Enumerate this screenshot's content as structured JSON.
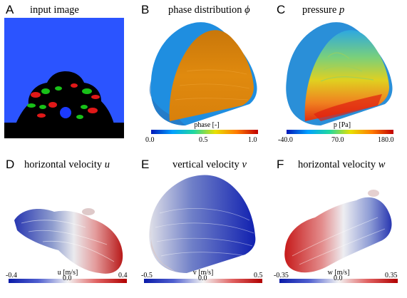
{
  "panels": [
    {
      "letter": "A",
      "title": "input image",
      "symbol": ""
    },
    {
      "letter": "B",
      "title": "phase distribution",
      "symbol": "ϕ"
    },
    {
      "letter": "C",
      "title": "pressure",
      "symbol": "p"
    },
    {
      "letter": "D",
      "title": "horizontal velocity",
      "symbol": "u"
    },
    {
      "letter": "E",
      "title": "vertical velocity",
      "symbol": "v"
    },
    {
      "letter": "F",
      "title": "horizontal velocity",
      "symbol": "w"
    }
  ],
  "colorbars": {
    "B": {
      "title": "phase [-]",
      "min": "0.0",
      "mid": "0.5",
      "max": "1.0",
      "palette": "rainbow"
    },
    "C": {
      "title": "p [Pa]",
      "min": "-40.0",
      "mid": "70.0",
      "max": "180.0",
      "palette": "rainbow"
    },
    "D": {
      "title": "u [m/s]",
      "min": "-0.4",
      "mid": "0.0",
      "max": "0.4",
      "palette": "diverging"
    },
    "E": {
      "title": "v [m/s]",
      "min": "-0.5",
      "mid": "0.0",
      "max": "0.5",
      "palette": "diverging"
    },
    "F": {
      "title": "w [m/s]",
      "min": "-0.35",
      "mid": "0.0",
      "max": "0.35",
      "palette": "diverging"
    }
  },
  "colors": {
    "background_blue": "#2b54ff",
    "phase_blue": "#1f8ee0",
    "phase_orange": "#e08a0e",
    "diverging_low": "#0a1aa8",
    "diverging_mid": "#f2f2f2",
    "diverging_high": "#b00000"
  }
}
